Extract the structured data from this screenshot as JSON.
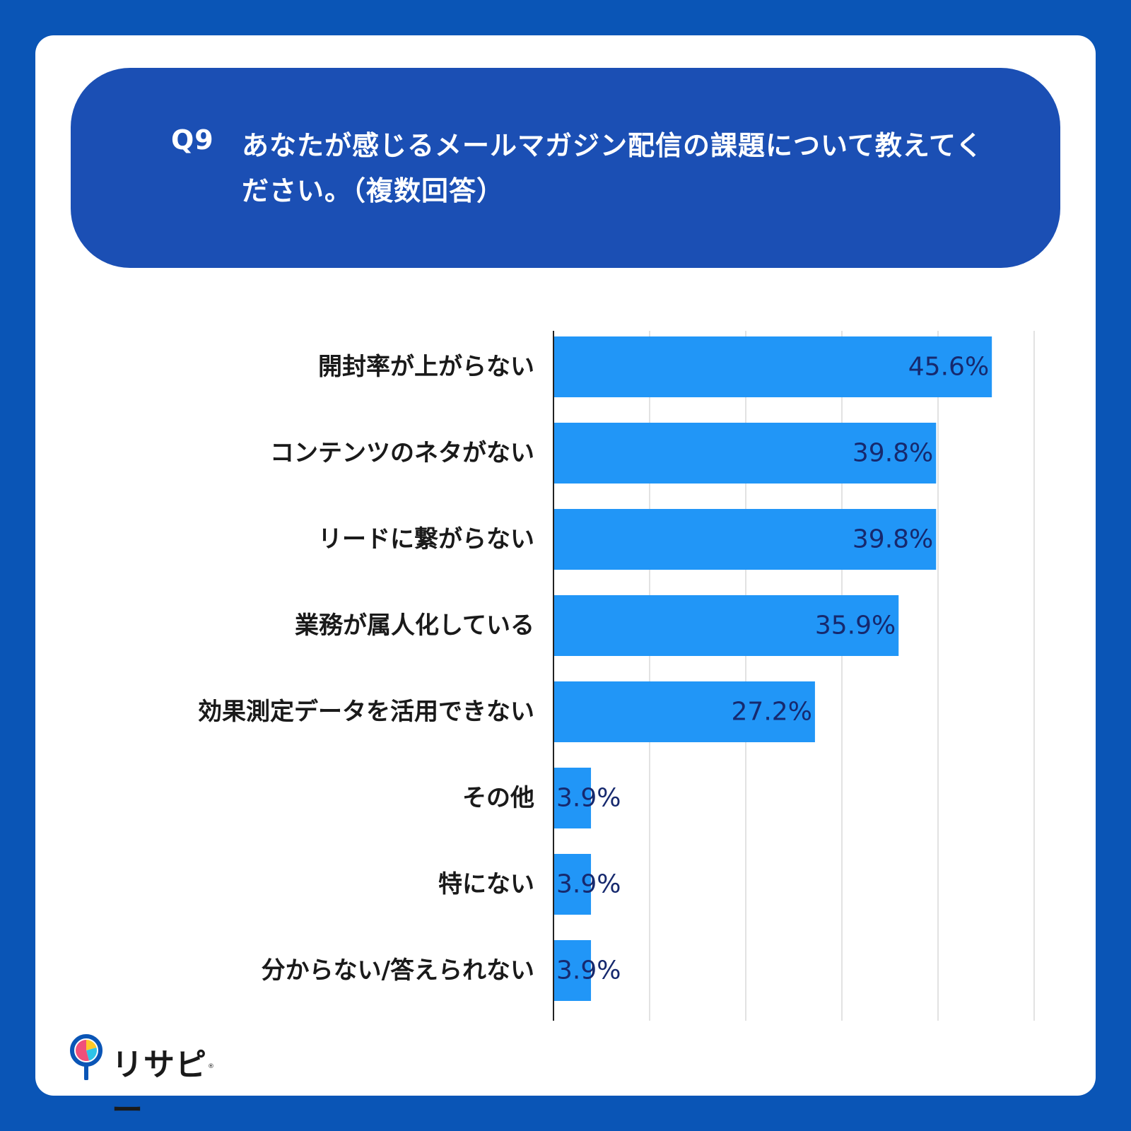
{
  "question": {
    "number": "Q9",
    "text": "あなたが感じるメールマガジン配信の課題について教えてください。（複数回答）"
  },
  "chart_data": {
    "type": "bar",
    "orientation": "horizontal",
    "categories": [
      "開封率が上がらない",
      "コンテンツのネタがない",
      "リードに繋がらない",
      "業務が属人化している",
      "効果測定データを活用できない",
      "その他",
      "特にない",
      "分からない/答えられない"
    ],
    "values": [
      45.6,
      39.8,
      39.8,
      35.9,
      27.2,
      3.9,
      3.9,
      3.9
    ],
    "value_labels": [
      "45.6%",
      "39.8%",
      "39.8%",
      "35.9%",
      "27.2%",
      "3.9%",
      "3.9%",
      "3.9%"
    ],
    "xlim": [
      0,
      50
    ],
    "grid": true,
    "bar_color": "#2196f7",
    "label_color": "#16296e"
  },
  "logo": {
    "name": "リサピー",
    "registered": "®"
  },
  "colors": {
    "background": "#0a55b6",
    "header": "#1b4fb4",
    "card": "#ffffff"
  }
}
